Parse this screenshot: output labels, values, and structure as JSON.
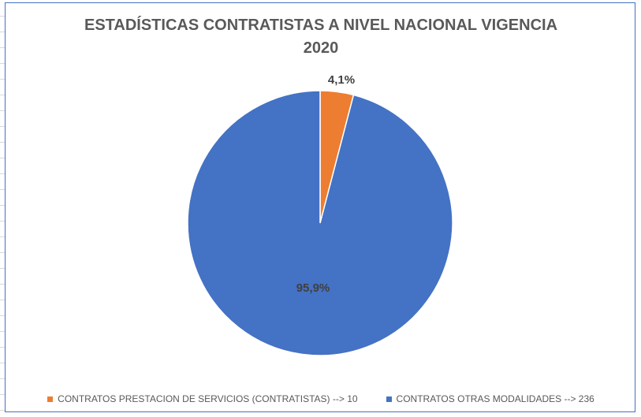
{
  "chart_data": {
    "type": "pie",
    "title_line1": "ESTADÍSTICAS CONTRATISTAS A NIVEL NACIONAL VIGENCIA",
    "title_line2": "2020",
    "slices": [
      {
        "name": "CONTRATOS PRESTACION DE SERVICIOS (CONTRATISTAS) --> 10",
        "value": 10,
        "label": "4,1%",
        "color": "#ed7d31"
      },
      {
        "name": "CONTRATOS OTRAS MODALIDADES --> 236",
        "value": 236,
        "label": "95,9%",
        "color": "#4472c4"
      }
    ],
    "legend_position": "bottom"
  }
}
